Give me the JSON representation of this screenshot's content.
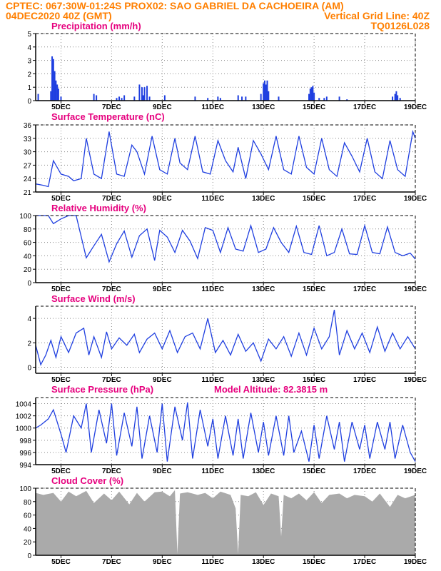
{
  "header": {
    "line1_left": "CPTEC:   067:30W-01:24S   PROX02: SAO GABRIEL DA CACHOEIRA (AM)",
    "line2_left": "04DEC2020 40Z (GMT)",
    "line2_right": "Vertical Grid Line: 40Z",
    "line3_right": "TQ0126L028"
  },
  "colors": {
    "series": "#1f3fe0",
    "title": "#e6007e",
    "header": "#ff7f00",
    "cloud": "#aaaaaa",
    "grid": "#8a8a8a"
  },
  "chart_data": [
    {
      "id": "precip",
      "type": "bar",
      "title": "Precipitation (mm/h)",
      "x_ticks": [
        "5DEC",
        "7DEC",
        "9DEC",
        "11DEC",
        "13DEC",
        "15DEC",
        "17DEC",
        "19DEC"
      ],
      "ylim": [
        0,
        5
      ],
      "yticks": [
        0,
        1,
        2,
        3,
        4,
        5
      ],
      "x": [
        4.1,
        4.6,
        4.65,
        4.7,
        4.75,
        4.8,
        4.85,
        4.9,
        5.0,
        6.3,
        6.4,
        7.2,
        7.3,
        7.4,
        7.5,
        7.9,
        8.1,
        8.2,
        8.25,
        8.3,
        8.4,
        8.5,
        9.1,
        10.3,
        10.8,
        11.2,
        11.3,
        12.0,
        12.15,
        12.3,
        12.9,
        13.0,
        13.05,
        13.1,
        13.15,
        13.2,
        13.6,
        14.8,
        14.85,
        14.9,
        14.95,
        15.0,
        15.2,
        15.4,
        15.5,
        16.0,
        16.3,
        18.1,
        18.2,
        18.25,
        18.3,
        18.4
      ],
      "values": [
        0.5,
        0.7,
        3.3,
        3.1,
        2.2,
        1.5,
        1.2,
        0.9,
        0.3,
        0.5,
        0.4,
        0.2,
        0.3,
        0.2,
        0.4,
        0.3,
        1.2,
        1.0,
        0.4,
        1.0,
        1.1,
        0.3,
        0.4,
        0.3,
        0.2,
        0.3,
        0.2,
        0.4,
        0.3,
        0.3,
        0.5,
        1.3,
        1.5,
        1.2,
        1.5,
        0.7,
        0.3,
        0.5,
        0.9,
        1.0,
        1.1,
        0.6,
        0.2,
        0.2,
        0.3,
        0.3,
        0.1,
        0.3,
        0.5,
        0.7,
        0.4,
        0.2
      ]
    },
    {
      "id": "temp",
      "type": "line",
      "title": "Surface Temperature (nC)",
      "x_ticks": [
        "5DEC",
        "7DEC",
        "9DEC",
        "11DEC",
        "13DEC",
        "15DEC",
        "17DEC",
        "19DEC"
      ],
      "ylim": [
        21,
        36
      ],
      "yticks": [
        21,
        24,
        27,
        30,
        33,
        36
      ],
      "x": [
        4.0,
        4.3,
        4.5,
        4.7,
        5.0,
        5.3,
        5.5,
        5.8,
        6.0,
        6.3,
        6.6,
        6.9,
        7.2,
        7.5,
        7.8,
        8.0,
        8.3,
        8.6,
        8.9,
        9.2,
        9.5,
        9.7,
        10.0,
        10.3,
        10.6,
        10.9,
        11.2,
        11.5,
        11.8,
        12.0,
        12.3,
        12.6,
        12.9,
        13.2,
        13.5,
        13.8,
        14.1,
        14.4,
        14.7,
        15.0,
        15.3,
        15.6,
        15.9,
        16.2,
        16.5,
        16.8,
        17.1,
        17.4,
        17.7,
        18.0,
        18.3,
        18.6,
        18.9,
        19.0
      ],
      "values": [
        22.8,
        22.5,
        22.2,
        28.0,
        25.0,
        24.5,
        23.5,
        24.0,
        33.0,
        25.0,
        24.0,
        34.5,
        25.0,
        24.5,
        31.5,
        30.0,
        25.0,
        33.5,
        26.0,
        25.0,
        33.0,
        27.5,
        26.0,
        33.5,
        25.5,
        25.0,
        32.5,
        28.0,
        25.5,
        31.0,
        24.0,
        32.5,
        29.5,
        26.0,
        33.5,
        26.0,
        25.0,
        33.5,
        26.5,
        25.0,
        33.0,
        26.0,
        24.5,
        32.0,
        29.0,
        25.5,
        33.0,
        25.5,
        24.0,
        32.5,
        26.0,
        24.5,
        34.5,
        33.0
      ]
    },
    {
      "id": "rh",
      "type": "line",
      "title": "Relative Humidity (%)",
      "x_ticks": [
        "5DEC",
        "7DEC",
        "9DEC",
        "11DEC",
        "13DEC",
        "15DEC",
        "17DEC",
        "19DEC"
      ],
      "ylim": [
        0,
        100
      ],
      "yticks": [
        0,
        20,
        40,
        60,
        80,
        100
      ],
      "x": [
        4.0,
        4.3,
        4.5,
        4.7,
        5.0,
        5.3,
        5.6,
        6.0,
        6.3,
        6.6,
        6.9,
        7.2,
        7.5,
        7.8,
        8.1,
        8.4,
        8.7,
        8.9,
        9.2,
        9.5,
        9.8,
        10.1,
        10.4,
        10.7,
        11.0,
        11.3,
        11.6,
        11.9,
        12.2,
        12.5,
        12.8,
        13.1,
        13.4,
        13.7,
        14.0,
        14.3,
        14.6,
        14.9,
        15.2,
        15.5,
        15.8,
        16.1,
        16.4,
        16.7,
        17.0,
        17.3,
        17.6,
        17.9,
        18.2,
        18.5,
        18.8,
        19.0
      ],
      "values": [
        100,
        100,
        100,
        88,
        95,
        100,
        100,
        37,
        55,
        72,
        31,
        58,
        77,
        38,
        70,
        80,
        33,
        78,
        68,
        45,
        78,
        62,
        36,
        82,
        78,
        45,
        82,
        50,
        47,
        85,
        45,
        50,
        82,
        60,
        45,
        84,
        45,
        42,
        85,
        40,
        45,
        80,
        43,
        42,
        85,
        45,
        43,
        83,
        45,
        40,
        44,
        35
      ]
    },
    {
      "id": "wind",
      "type": "line",
      "title": "Surface Wind (m/s)",
      "x_ticks": [
        "5DEC",
        "7DEC",
        "9DEC",
        "11DEC",
        "13DEC",
        "15DEC",
        "17DEC",
        "19DEC"
      ],
      "ylim": [
        -0.5,
        5
      ],
      "yticks": [
        0,
        2,
        4
      ],
      "x": [
        4.0,
        4.2,
        4.4,
        4.6,
        4.8,
        5.0,
        5.3,
        5.6,
        5.9,
        6.1,
        6.3,
        6.6,
        6.8,
        7.0,
        7.3,
        7.6,
        7.9,
        8.1,
        8.4,
        8.7,
        9.0,
        9.3,
        9.6,
        9.9,
        10.2,
        10.5,
        10.8,
        11.1,
        11.4,
        11.7,
        12.0,
        12.3,
        12.6,
        12.9,
        13.2,
        13.5,
        13.8,
        14.1,
        14.4,
        14.7,
        15.0,
        15.3,
        15.6,
        15.8,
        16.0,
        16.3,
        16.6,
        16.9,
        17.2,
        17.5,
        17.8,
        18.1,
        18.4,
        18.7,
        19.0
      ],
      "values": [
        1.8,
        0.2,
        1.0,
        2.2,
        0.8,
        2.5,
        1.2,
        2.8,
        3.2,
        1.0,
        2.5,
        0.8,
        2.9,
        1.5,
        2.4,
        1.8,
        2.7,
        1.2,
        2.3,
        2.8,
        1.5,
        3.0,
        1.2,
        2.5,
        2.8,
        1.5,
        4.0,
        1.2,
        2.2,
        1.0,
        2.7,
        1.3,
        2.0,
        0.5,
        2.3,
        1.5,
        2.5,
        0.9,
        2.8,
        1.0,
        3.2,
        1.5,
        2.5,
        4.7,
        1.0,
        3.0,
        1.5,
        2.8,
        1.2,
        3.3,
        1.3,
        2.8,
        1.5,
        2.5,
        1.5
      ]
    },
    {
      "id": "pres",
      "type": "line",
      "title": "Surface Pressure (hPa)",
      "annotation": "Model Altitude: 82.3815 m",
      "x_ticks": [
        "5DEC",
        "7DEC",
        "9DEC",
        "11DEC",
        "13DEC",
        "15DEC",
        "17DEC",
        "19DEC"
      ],
      "ylim": [
        994,
        1005
      ],
      "yticks": [
        994,
        996,
        998,
        1000,
        1002,
        1004
      ],
      "x": [
        4.0,
        4.2,
        4.5,
        4.7,
        5.0,
        5.2,
        5.5,
        5.8,
        6.0,
        6.2,
        6.5,
        6.8,
        7.0,
        7.2,
        7.5,
        7.8,
        8.0,
        8.2,
        8.5,
        8.8,
        9.0,
        9.2,
        9.5,
        9.8,
        10.0,
        10.2,
        10.5,
        10.8,
        11.0,
        11.2,
        11.5,
        11.8,
        12.0,
        12.2,
        12.5,
        12.8,
        13.0,
        13.2,
        13.5,
        13.8,
        14.0,
        14.2,
        14.5,
        14.8,
        15.0,
        15.2,
        15.5,
        15.8,
        16.0,
        16.2,
        16.5,
        16.8,
        17.0,
        17.2,
        17.5,
        17.8,
        18.0,
        18.2,
        18.5,
        18.8,
        19.0
      ],
      "values": [
        1000.0,
        1000.5,
        1001.5,
        1003.0,
        999.0,
        996.0,
        1002.0,
        1000.0,
        1004.0,
        996.0,
        1003.0,
        997.5,
        1004.0,
        995.5,
        1002.5,
        997.0,
        1003.5,
        995.0,
        1002.0,
        996.0,
        1004.0,
        994.5,
        1003.5,
        998.0,
        1004.2,
        995.0,
        1003.0,
        997.0,
        1001.5,
        995.0,
        1002.0,
        995.5,
        1001.5,
        995.0,
        1002.5,
        996.0,
        1001.0,
        995.5,
        1002.0,
        995.5,
        1002.0,
        996.0,
        999.5,
        994.5,
        1000.5,
        995.0,
        1002.0,
        996.5,
        1001.0,
        994.5,
        1001.0,
        996.5,
        1000.5,
        995.0,
        1001.0,
        996.5,
        1001.0,
        995.0,
        1000.5,
        996.0,
        994.5
      ]
    },
    {
      "id": "cloud",
      "type": "area",
      "title": "Cloud Cover (%)",
      "x_ticks": [
        "5DEC",
        "7DEC",
        "9DEC",
        "11DEC",
        "13DEC",
        "15DEC",
        "17DEC",
        "19DEC"
      ],
      "ylim": [
        0,
        100
      ],
      "yticks": [
        0,
        20,
        40,
        60,
        80,
        100
      ],
      "x": [
        4.0,
        4.3,
        4.7,
        5.0,
        5.3,
        5.6,
        6.0,
        6.3,
        6.7,
        7.0,
        7.3,
        7.7,
        8.0,
        8.3,
        8.7,
        9.0,
        9.3,
        9.5,
        9.6,
        9.7,
        10.0,
        10.4,
        10.7,
        11.0,
        11.3,
        11.7,
        11.9,
        12.0,
        12.1,
        12.4,
        12.7,
        13.0,
        13.3,
        13.6,
        13.7,
        13.8,
        14.1,
        14.4,
        14.7,
        15.0,
        15.3,
        15.6,
        16.0,
        16.3,
        16.6,
        17.0,
        17.3,
        17.6,
        18.0,
        18.3,
        18.6,
        19.0
      ],
      "values": [
        93,
        90,
        93,
        80,
        95,
        88,
        96,
        78,
        92,
        82,
        95,
        76,
        93,
        80,
        94,
        95,
        88,
        97,
        2,
        92,
        94,
        90,
        93,
        85,
        95,
        90,
        70,
        2,
        90,
        88,
        94,
        75,
        92,
        88,
        28,
        90,
        85,
        92,
        82,
        94,
        78,
        90,
        92,
        85,
        90,
        88,
        80,
        92,
        72,
        90,
        85,
        90
      ]
    }
  ]
}
